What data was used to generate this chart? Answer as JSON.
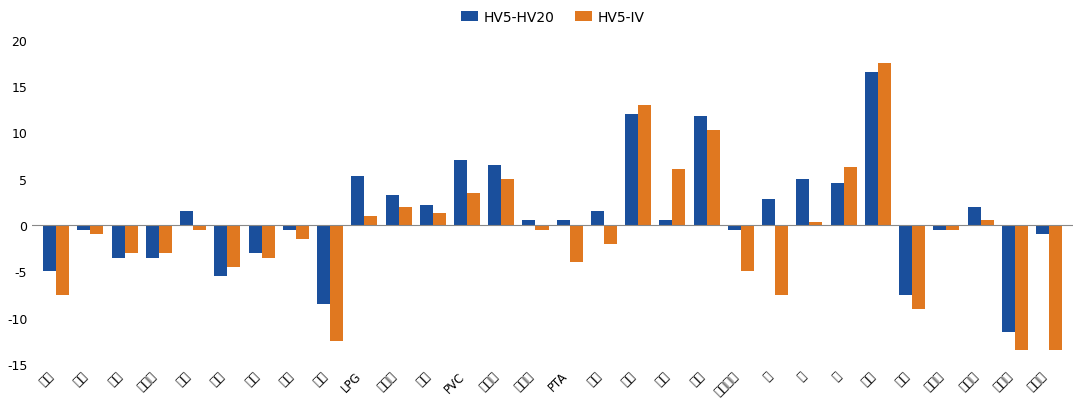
{
  "categories": [
    "豆粕",
    "玉米",
    "豆油",
    "棕榈油",
    "菜粕",
    "菜油",
    "白糖",
    "棉花",
    "原油",
    "LPG",
    "聚丙烯",
    "塑料",
    "PVC",
    "苯乙烯",
    "乙二醇",
    "PTA",
    "甲醇",
    "纯碱",
    "尿素",
    "橡胶",
    "合成橡胶",
    "铜",
    "铝",
    "锌",
    "黄金",
    "白银",
    "铁矿石",
    "螺纹钢",
    "工业硅",
    "碳酸锂"
  ],
  "hv5_hv20": [
    -5.0,
    -0.5,
    -3.5,
    -3.5,
    1.5,
    -5.5,
    -3.0,
    -0.5,
    -8.5,
    5.3,
    3.3,
    2.2,
    7.0,
    6.5,
    0.5,
    0.5,
    1.5,
    12.0,
    0.5,
    11.8,
    -0.5,
    2.8,
    5.0,
    4.5,
    16.5,
    -7.5,
    -0.5,
    2.0,
    -11.5,
    -1.0
  ],
  "hv5_iv": [
    -7.5,
    -1.0,
    -3.0,
    -3.0,
    -0.5,
    -4.5,
    -3.5,
    -1.5,
    -12.5,
    1.0,
    2.0,
    1.3,
    3.5,
    5.0,
    -0.5,
    -4.0,
    -2.0,
    13.0,
    6.0,
    10.3,
    -5.0,
    -7.5,
    0.3,
    6.3,
    17.5,
    -9.0,
    -0.5,
    0.5,
    -13.5,
    -13.5
  ],
  "color_hv5_hv20": "#1a4f9c",
  "color_hv5_iv": "#e07820",
  "ylim": [
    -15,
    20
  ],
  "yticks": [
    -15,
    -10,
    -5,
    0,
    5,
    10,
    15,
    20
  ],
  "legend_hv5_hv20": "HV5-HV20",
  "legend_hv5_iv": "HV5-IV",
  "background_color": "#ffffff",
  "bar_width": 0.38,
  "font_paths": [
    "/usr/share/fonts/truetype/wqy/wqy-microhei.ttc",
    "/usr/share/fonts/opentype/noto/NotoSansCJK-Regular.ttc"
  ]
}
